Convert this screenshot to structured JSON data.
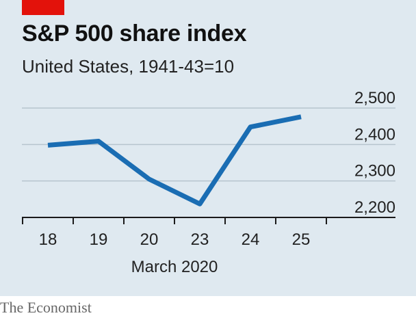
{
  "header": {
    "title": "S&P 500 share index",
    "subtitle": "United States, 1941-43=10"
  },
  "footer": {
    "source": "The Economist"
  },
  "colors": {
    "line": "#1a6db3",
    "panel": "#dfe9f0",
    "accent": "#e3120b",
    "grid": "#b6c4ce"
  },
  "chart_data": {
    "type": "line",
    "title": "S&P 500 share index",
    "subtitle": "United States, 1941-43=10",
    "categories": [
      "18",
      "19",
      "20",
      "23",
      "24",
      "25"
    ],
    "xlabel": "March 2020",
    "ylabel": "",
    "ylim": [
      2200,
      2500
    ],
    "yticks": [
      2200,
      2300,
      2400,
      2500
    ],
    "ytick_labels": [
      "2,200",
      "2,300",
      "2,400",
      "2,500"
    ],
    "grid": true,
    "series": [
      {
        "values": [
          2398,
          2409,
          2305,
          2237,
          2448,
          2476
        ]
      }
    ]
  }
}
